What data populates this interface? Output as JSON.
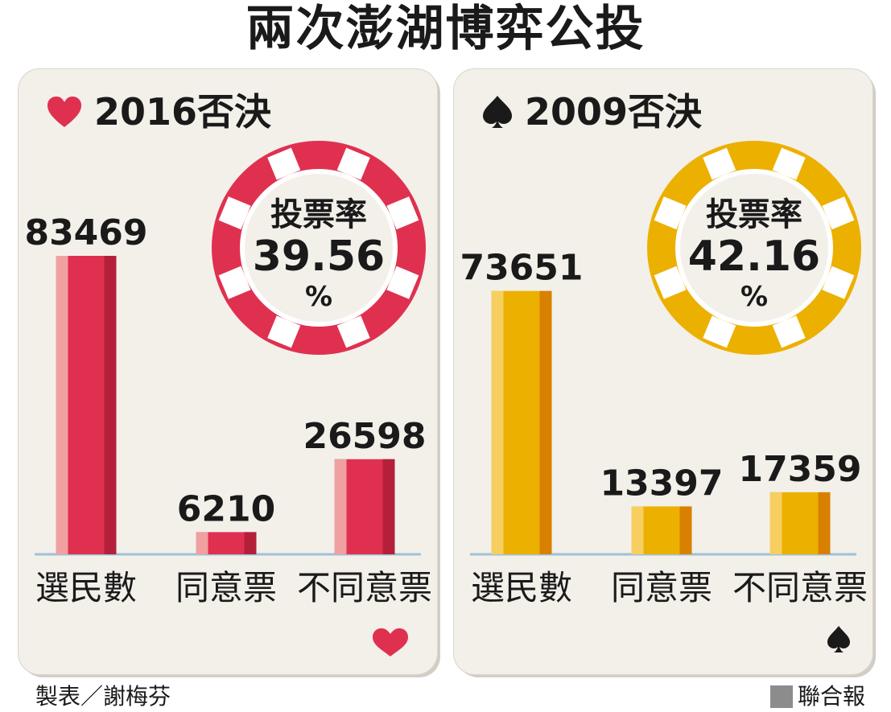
{
  "title": "兩次澎湖博弈公投",
  "colors": {
    "red": "#e03050",
    "red_light": "#f0a0a0",
    "red_dark": "#b4203a",
    "gold": "#ecb000",
    "gold_light": "#f6cf60",
    "gold_dark": "#d88000",
    "baseline": "#9ec2d8",
    "text": "#1a1a1a"
  },
  "chart_data": [
    {
      "type": "bar",
      "title": "2016否決",
      "suit": "heart-icon",
      "categories": [
        "選民數",
        "同意票",
        "不同意票"
      ],
      "values": [
        83469,
        6210,
        26598
      ],
      "value_labels": [
        "83469",
        "6210",
        "26598"
      ],
      "turnout": {
        "label": "投票率",
        "value": "39.56",
        "unit": "%"
      }
    },
    {
      "type": "bar",
      "title": "2009否決",
      "suit": "spade-icon",
      "categories": [
        "選民數",
        "同意票",
        "不同意票"
      ],
      "values": [
        73651,
        13397,
        17359
      ],
      "value_labels": [
        "73651",
        "13397",
        "17359"
      ],
      "turnout": {
        "label": "投票率",
        "value": "42.16",
        "unit": "%"
      }
    }
  ],
  "footer": {
    "author": "製表／謝梅芬",
    "source": "聯合報"
  }
}
